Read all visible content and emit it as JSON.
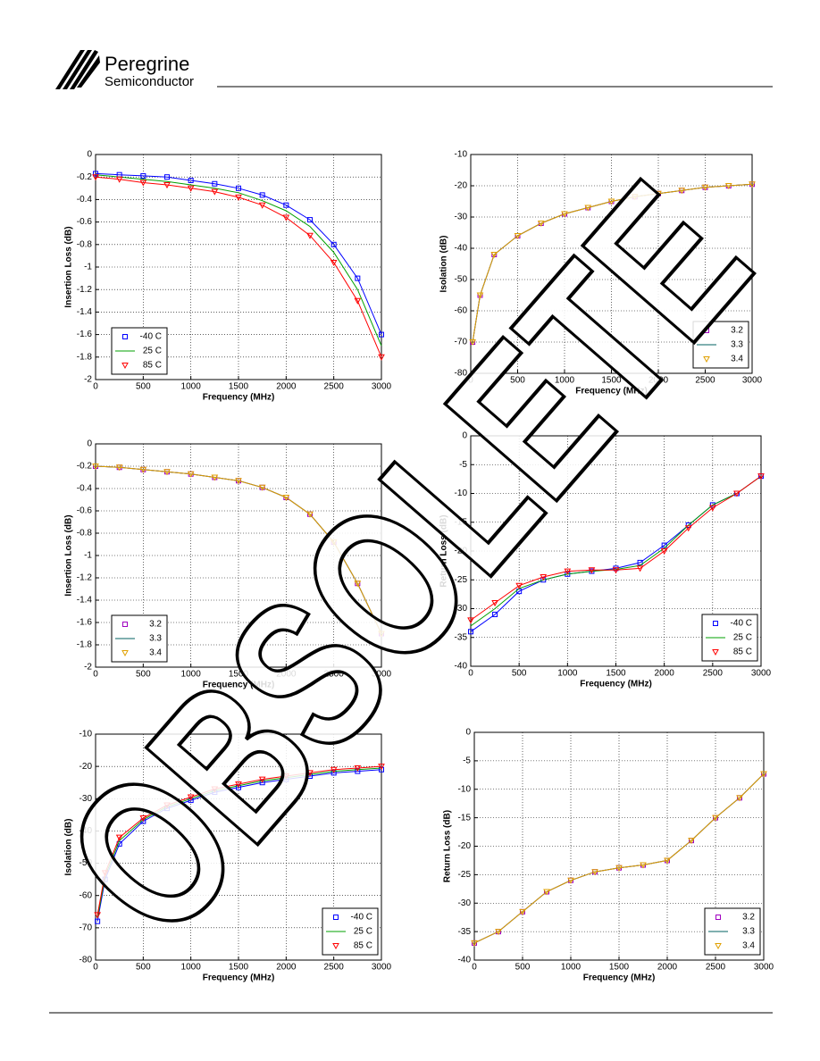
{
  "header": {
    "company": "Peregrine",
    "division": "Semiconductor"
  },
  "watermark": "OBSOLETE",
  "chart_data": [
    {
      "type": "line",
      "y_label": "Insertion Loss (dB)",
      "x_label": "Frequency (MHz)",
      "legend": "lower left",
      "grid": true,
      "xlim": [
        0,
        3000
      ],
      "xticks": [
        0,
        500,
        1000,
        1500,
        2000,
        2500,
        3000
      ],
      "ylim": [
        -2,
        0
      ],
      "yticks": [
        0,
        -0.2,
        -0.4,
        -0.6,
        -0.8,
        -1,
        -1.2,
        -1.4,
        -1.6,
        -1.8,
        -2
      ],
      "x": [
        0,
        250,
        500,
        750,
        1000,
        1250,
        1500,
        1750,
        2000,
        2250,
        2500,
        2750,
        3000
      ],
      "series": [
        {
          "name": "-40 C",
          "color": "#0000ff",
          "marker": "square",
          "values": [
            -0.17,
            -0.18,
            -0.19,
            -0.2,
            -0.23,
            -0.26,
            -0.3,
            -0.36,
            -0.45,
            -0.58,
            -0.8,
            -1.1,
            -1.6
          ]
        },
        {
          "name": "25 C",
          "color": "#00a000",
          "marker": "none",
          "values": [
            -0.18,
            -0.2,
            -0.22,
            -0.24,
            -0.27,
            -0.3,
            -0.34,
            -0.41,
            -0.5,
            -0.64,
            -0.87,
            -1.2,
            -1.7
          ]
        },
        {
          "name": "85 C",
          "color": "#ff0000",
          "marker": "triangle",
          "values": [
            -0.2,
            -0.22,
            -0.25,
            -0.27,
            -0.3,
            -0.33,
            -0.38,
            -0.45,
            -0.56,
            -0.72,
            -0.96,
            -1.3,
            -1.8
          ]
        }
      ]
    },
    {
      "type": "line",
      "y_label": "Isolation (dB)",
      "x_label": "Frequency (MHz)",
      "legend": "lower right",
      "grid": true,
      "xlim": [
        0,
        3000
      ],
      "xticks": [
        0,
        500,
        1000,
        1500,
        2000,
        2500,
        3000
      ],
      "ylim": [
        -80,
        -10
      ],
      "yticks": [
        -10,
        -20,
        -30,
        -40,
        -50,
        -60,
        -70,
        -80
      ],
      "x": [
        20,
        100,
        250,
        500,
        750,
        1000,
        1250,
        1500,
        1750,
        2000,
        2250,
        2500,
        2750,
        3000
      ],
      "series": [
        {
          "name": "3.2",
          "color": "#a000c0",
          "marker": "square",
          "values": [
            -70,
            -55,
            -42,
            -36,
            -32,
            -29,
            -27,
            -25,
            -23.5,
            -22.5,
            -21.5,
            -20.5,
            -20,
            -19.5
          ]
        },
        {
          "name": "3.3",
          "color": "#006060",
          "marker": "none",
          "values": [
            -70,
            -55,
            -42,
            -36,
            -32,
            -29,
            -27,
            -25,
            -23.5,
            -22.5,
            -21.5,
            -20.5,
            -20,
            -19.5
          ]
        },
        {
          "name": "3.4",
          "color": "#e0a000",
          "marker": "triangle",
          "values": [
            -70,
            -55,
            -42,
            -36,
            -32,
            -29,
            -27,
            -25,
            -23.5,
            -22.5,
            -21.5,
            -20.5,
            -20,
            -19.5
          ]
        }
      ]
    },
    {
      "type": "line",
      "y_label": "Insertion Loss (dB)",
      "x_label": "Frequency (MHz)",
      "legend": "lower left",
      "grid": true,
      "xlim": [
        0,
        3000
      ],
      "xticks": [
        0,
        500,
        1000,
        1500,
        2000,
        2500,
        3000
      ],
      "ylim": [
        -2,
        0
      ],
      "yticks": [
        0,
        -0.2,
        -0.4,
        -0.6,
        -0.8,
        -1,
        -1.2,
        -1.4,
        -1.6,
        -1.8,
        -2
      ],
      "x": [
        0,
        250,
        500,
        750,
        1000,
        1250,
        1500,
        1750,
        2000,
        2250,
        2500,
        2750,
        3000
      ],
      "series": [
        {
          "name": "3.2",
          "color": "#a000c0",
          "marker": "square",
          "values": [
            -0.2,
            -0.21,
            -0.23,
            -0.25,
            -0.27,
            -0.3,
            -0.33,
            -0.39,
            -0.48,
            -0.63,
            -0.88,
            -1.25,
            -1.7
          ]
        },
        {
          "name": "3.3",
          "color": "#006060",
          "marker": "none",
          "values": [
            -0.2,
            -0.21,
            -0.23,
            -0.25,
            -0.27,
            -0.3,
            -0.33,
            -0.39,
            -0.48,
            -0.63,
            -0.88,
            -1.25,
            -1.7
          ]
        },
        {
          "name": "3.4",
          "color": "#e0a000",
          "marker": "triangle",
          "values": [
            -0.2,
            -0.21,
            -0.23,
            -0.25,
            -0.27,
            -0.3,
            -0.33,
            -0.39,
            -0.48,
            -0.63,
            -0.88,
            -1.25,
            -1.7
          ]
        }
      ]
    },
    {
      "type": "line",
      "y_label": "Return Loss (dB)",
      "x_label": "Frequency (MHz)",
      "legend": "lower right",
      "grid": true,
      "xlim": [
        0,
        3000
      ],
      "xticks": [
        0,
        500,
        1000,
        1500,
        2000,
        2500,
        3000
      ],
      "ylim": [
        -40,
        0
      ],
      "yticks": [
        0,
        -5,
        -10,
        -15,
        -20,
        -25,
        -30,
        -35,
        -40
      ],
      "x": [
        0,
        250,
        500,
        750,
        1000,
        1250,
        1500,
        1750,
        2000,
        2250,
        2500,
        2750,
        3000
      ],
      "series": [
        {
          "name": "-40 C",
          "color": "#0000ff",
          "marker": "square",
          "values": [
            -34,
            -31,
            -27,
            -25,
            -24,
            -23.5,
            -23,
            -22,
            -19,
            -15.5,
            -12,
            -10,
            -7
          ]
        },
        {
          "name": "25 C",
          "color": "#00a000",
          "marker": "none",
          "values": [
            -33,
            -30,
            -26.5,
            -25,
            -24,
            -23.5,
            -23.2,
            -22.5,
            -19.5,
            -15.5,
            -12,
            -10,
            -7
          ]
        },
        {
          "name": "85 C",
          "color": "#ff0000",
          "marker": "triangle",
          "values": [
            -32,
            -29,
            -26,
            -24.5,
            -23.5,
            -23.3,
            -23.3,
            -23,
            -20,
            -16,
            -12.5,
            -10,
            -7
          ]
        }
      ]
    },
    {
      "type": "line",
      "y_label": "Isolation (dB)",
      "x_label": "Frequency (MHz)",
      "legend": "lower right",
      "grid": true,
      "xlim": [
        0,
        3000
      ],
      "xticks": [
        0,
        500,
        1000,
        1500,
        2000,
        2500,
        3000
      ],
      "ylim": [
        -80,
        -10
      ],
      "yticks": [
        -10,
        -20,
        -30,
        -40,
        -50,
        -60,
        -70,
        -80
      ],
      "x": [
        20,
        100,
        250,
        500,
        750,
        1000,
        1250,
        1500,
        1750,
        2000,
        2250,
        2500,
        2750,
        3000
      ],
      "series": [
        {
          "name": "-40 C",
          "color": "#0000ff",
          "marker": "square",
          "values": [
            -68,
            -55,
            -44,
            -37,
            -33,
            -30.5,
            -28,
            -26.5,
            -25,
            -24,
            -23,
            -22,
            -21.5,
            -21
          ]
        },
        {
          "name": "25 C",
          "color": "#00a000",
          "marker": "none",
          "values": [
            -67,
            -54,
            -43,
            -36.5,
            -32.5,
            -30,
            -27.5,
            -26,
            -24.5,
            -23.5,
            -22.5,
            -21.5,
            -21,
            -20.5
          ]
        },
        {
          "name": "85 C",
          "color": "#ff0000",
          "marker": "triangle",
          "values": [
            -66,
            -53,
            -42,
            -36,
            -32,
            -29.5,
            -27,
            -25.5,
            -24,
            -23,
            -22,
            -21,
            -20.5,
            -20
          ]
        }
      ]
    },
    {
      "type": "line",
      "y_label": "Return Loss (dB)",
      "x_label": "Frequency (MHz)",
      "legend": "lower right",
      "grid": true,
      "xlim": [
        0,
        3000
      ],
      "xticks": [
        0,
        500,
        1000,
        1500,
        2000,
        2500,
        3000
      ],
      "ylim": [
        -40,
        0
      ],
      "yticks": [
        0,
        -5,
        -10,
        -15,
        -20,
        -25,
        -30,
        -35,
        -40
      ],
      "x": [
        0,
        250,
        500,
        750,
        1000,
        1250,
        1500,
        1750,
        2000,
        2250,
        2500,
        2750,
        3000
      ],
      "series": [
        {
          "name": "3.2",
          "color": "#a000c0",
          "marker": "square",
          "values": [
            -37,
            -35,
            -31.5,
            -28,
            -26,
            -24.5,
            -23.8,
            -23.3,
            -22.5,
            -19,
            -15,
            -11.5,
            -7.3
          ]
        },
        {
          "name": "3.3",
          "color": "#006060",
          "marker": "none",
          "values": [
            -37,
            -35,
            -31.5,
            -28,
            -26,
            -24.5,
            -23.8,
            -23.3,
            -22.5,
            -19,
            -15,
            -11.5,
            -7.3
          ]
        },
        {
          "name": "3.4",
          "color": "#e0a000",
          "marker": "triangle",
          "values": [
            -37,
            -35,
            -31.5,
            -28,
            -26,
            -24.5,
            -23.8,
            -23.3,
            -22.5,
            -19,
            -15,
            -11.5,
            -7.3
          ]
        }
      ]
    }
  ]
}
